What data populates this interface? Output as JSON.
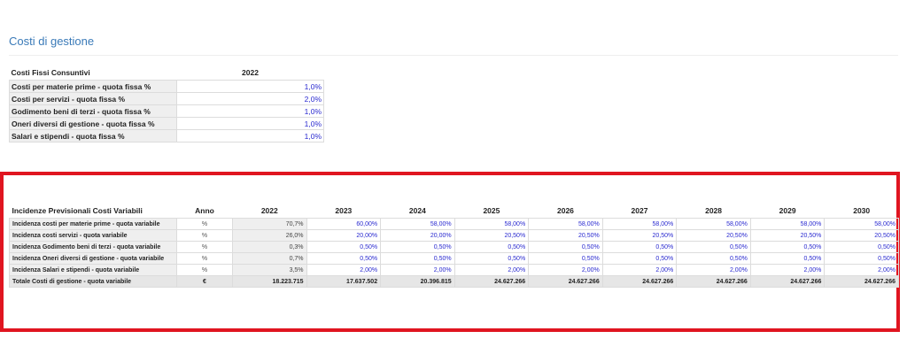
{
  "section_title": "Costi di gestione",
  "fixed_costs": {
    "header_label": "Costi Fissi Consuntivi",
    "year": "2022",
    "rows": [
      {
        "label": "Costi per materie prime - quota fissa %",
        "value": "1,0%"
      },
      {
        "label": "Costi per servizi - quota fissa %",
        "value": "2,0%"
      },
      {
        "label": "Godimento beni di terzi - quota fissa %",
        "value": "1,0%"
      },
      {
        "label": "Oneri diversi di gestione - quota fissa %",
        "value": "1,0%"
      },
      {
        "label": "Salari e stipendi - quota fissa %",
        "value": "1,0%"
      }
    ]
  },
  "variable_costs": {
    "header_label": "Incidenze Previsionali Costi Variabili",
    "anno_label": "Anno",
    "years": [
      "2022",
      "2023",
      "2024",
      "2025",
      "2026",
      "2027",
      "2028",
      "2029",
      "2030"
    ],
    "rows": [
      {
        "label": "Incidenza costi per materie prime - quota variabile",
        "unit": "%",
        "values": [
          "70,7%",
          "60,00%",
          "58,00%",
          "58,00%",
          "58,00%",
          "58,00%",
          "58,00%",
          "58,00%",
          "58,00%"
        ]
      },
      {
        "label": "Incidenza costi servizi - quota variabile",
        "unit": "%",
        "values": [
          "26,0%",
          "20,00%",
          "20,00%",
          "20,50%",
          "20,50%",
          "20,50%",
          "20,50%",
          "20,50%",
          "20,50%"
        ]
      },
      {
        "label": "Incidenza Godimento beni di terzi - quota variabile",
        "unit": "%",
        "values": [
          "0,3%",
          "0,50%",
          "0,50%",
          "0,50%",
          "0,50%",
          "0,50%",
          "0,50%",
          "0,50%",
          "0,50%"
        ]
      },
      {
        "label": "Incidenza Oneri diversi di gestione - quota variabile",
        "unit": "%",
        "values": [
          "0,7%",
          "0,50%",
          "0,50%",
          "0,50%",
          "0,50%",
          "0,50%",
          "0,50%",
          "0,50%",
          "0,50%"
        ]
      },
      {
        "label": "Incidenza Salari e stipendi - quota variabile",
        "unit": "%",
        "values": [
          "3,5%",
          "2,00%",
          "2,00%",
          "2,00%",
          "2,00%",
          "2,00%",
          "2,00%",
          "2,00%",
          "2,00%"
        ]
      }
    ],
    "total": {
      "label": "Totale Costi di gestione - quota variabile",
      "unit": "€",
      "values": [
        "18.223.715",
        "17.637.502",
        "20.396.815",
        "24.627.266",
        "24.627.266",
        "24.627.266",
        "24.627.266",
        "24.627.266",
        "24.627.266"
      ]
    }
  },
  "colors": {
    "title": "#3a7ab8",
    "input_value": "#2a2ad0",
    "highlight": "#e01520"
  }
}
